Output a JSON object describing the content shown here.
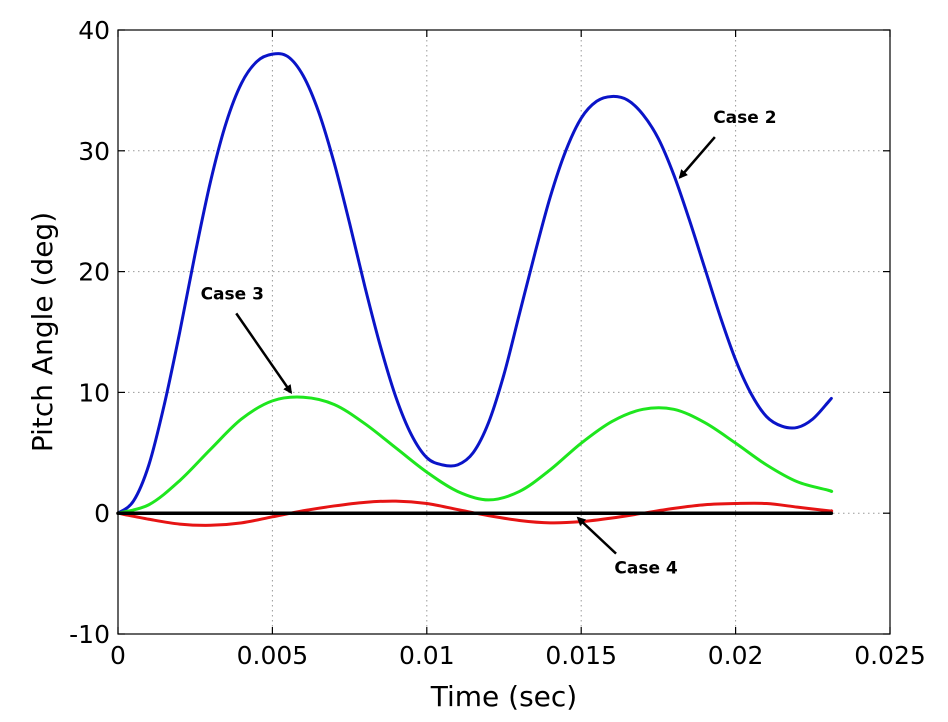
{
  "chart_data": {
    "type": "line",
    "title": "",
    "xlabel": "Time (sec)",
    "ylabel": "Pitch Angle (deg)",
    "xlim": [
      0,
      0.025
    ],
    "ylim": [
      -10,
      40
    ],
    "xticks": [
      0,
      0.005,
      0.01,
      0.015,
      0.02,
      0.025
    ],
    "xtick_labels": [
      "0",
      "0.005",
      "0.01",
      "0.015",
      "0.02",
      "0.025"
    ],
    "yticks": [
      -10,
      0,
      10,
      20,
      30,
      40
    ],
    "ytick_labels": [
      "-10",
      "0",
      "10",
      "20",
      "30",
      "40"
    ],
    "grid": true,
    "series": [
      {
        "name": "Case 2",
        "color": "#0a14c8",
        "points": [
          [
            0,
            0
          ],
          [
            0.0005,
            1
          ],
          [
            0.001,
            4
          ],
          [
            0.0015,
            9
          ],
          [
            0.002,
            15
          ],
          [
            0.0025,
            21.5
          ],
          [
            0.003,
            27.5
          ],
          [
            0.0035,
            32.3
          ],
          [
            0.004,
            35.6
          ],
          [
            0.0045,
            37.4
          ],
          [
            0.005,
            38
          ],
          [
            0.0055,
            37.8
          ],
          [
            0.006,
            36.2
          ],
          [
            0.0065,
            33.2
          ],
          [
            0.007,
            29
          ],
          [
            0.0075,
            24
          ],
          [
            0.008,
            18.7
          ],
          [
            0.0085,
            13.8
          ],
          [
            0.009,
            9.6
          ],
          [
            0.0095,
            6.5
          ],
          [
            0.01,
            4.6
          ],
          [
            0.0105,
            4
          ],
          [
            0.011,
            4
          ],
          [
            0.0115,
            5
          ],
          [
            0.012,
            7.5
          ],
          [
            0.0125,
            11.5
          ],
          [
            0.013,
            16.5
          ],
          [
            0.0135,
            21.5
          ],
          [
            0.014,
            26.2
          ],
          [
            0.0145,
            30
          ],
          [
            0.015,
            32.7
          ],
          [
            0.0155,
            34.1
          ],
          [
            0.016,
            34.5
          ],
          [
            0.0165,
            34.2
          ],
          [
            0.017,
            33
          ],
          [
            0.0175,
            31
          ],
          [
            0.018,
            28
          ],
          [
            0.0185,
            24.3
          ],
          [
            0.019,
            20.3
          ],
          [
            0.0195,
            16.3
          ],
          [
            0.02,
            12.7
          ],
          [
            0.0205,
            9.9
          ],
          [
            0.021,
            8
          ],
          [
            0.0215,
            7.2
          ],
          [
            0.022,
            7.1
          ],
          [
            0.0225,
            7.8
          ],
          [
            0.023,
            9.2
          ],
          [
            0.0231,
            9.5
          ]
        ]
      },
      {
        "name": "Case 3",
        "color": "#1ee61e",
        "points": [
          [
            0,
            0
          ],
          [
            0.001,
            0.7
          ],
          [
            0.002,
            2.7
          ],
          [
            0.003,
            5.3
          ],
          [
            0.004,
            7.8
          ],
          [
            0.005,
            9.3
          ],
          [
            0.006,
            9.6
          ],
          [
            0.007,
            9
          ],
          [
            0.008,
            7.4
          ],
          [
            0.009,
            5.4
          ],
          [
            0.01,
            3.4
          ],
          [
            0.011,
            1.8
          ],
          [
            0.012,
            1.1
          ],
          [
            0.013,
            1.8
          ],
          [
            0.014,
            3.6
          ],
          [
            0.015,
            5.8
          ],
          [
            0.016,
            7.6
          ],
          [
            0.017,
            8.6
          ],
          [
            0.018,
            8.6
          ],
          [
            0.019,
            7.5
          ],
          [
            0.02,
            5.8
          ],
          [
            0.021,
            4
          ],
          [
            0.022,
            2.6
          ],
          [
            0.023,
            1.9
          ],
          [
            0.0231,
            1.8
          ]
        ]
      },
      {
        "name": "Case 4",
        "color": "#e61414",
        "points": [
          [
            0,
            0
          ],
          [
            0.001,
            -0.5
          ],
          [
            0.002,
            -0.9
          ],
          [
            0.003,
            -1
          ],
          [
            0.004,
            -0.8
          ],
          [
            0.005,
            -0.3
          ],
          [
            0.006,
            0.2
          ],
          [
            0.007,
            0.6
          ],
          [
            0.008,
            0.9
          ],
          [
            0.009,
            1
          ],
          [
            0.01,
            0.8
          ],
          [
            0.011,
            0.3
          ],
          [
            0.012,
            -0.2
          ],
          [
            0.013,
            -0.6
          ],
          [
            0.014,
            -0.8
          ],
          [
            0.015,
            -0.7
          ],
          [
            0.016,
            -0.4
          ],
          [
            0.017,
            0
          ],
          [
            0.018,
            0.4
          ],
          [
            0.019,
            0.7
          ],
          [
            0.02,
            0.8
          ],
          [
            0.021,
            0.8
          ],
          [
            0.022,
            0.5
          ],
          [
            0.023,
            0.2
          ],
          [
            0.0231,
            0.2
          ]
        ]
      },
      {
        "color": "#000000",
        "points": [
          [
            0,
            0
          ],
          [
            0.0231,
            0
          ]
        ]
      }
    ],
    "annotations": [
      {
        "text": "Case 2",
        "text_at": [
          0.0203,
          32.3
        ],
        "arrow_to": [
          0.0182,
          27.8
        ]
      },
      {
        "text": "Case 3",
        "text_at": [
          0.0037,
          17.7
        ],
        "arrow_to": [
          0.0056,
          10
        ]
      },
      {
        "text": "Case 4",
        "text_at": [
          0.0171,
          -5.0
        ],
        "arrow_to": [
          0.0149,
          -0.4
        ]
      }
    ]
  }
}
